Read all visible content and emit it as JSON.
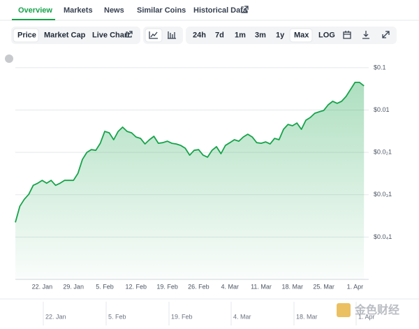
{
  "tabs": [
    {
      "label": "Overview",
      "active": true
    },
    {
      "label": "Markets",
      "active": false
    },
    {
      "label": "News",
      "active": false
    },
    {
      "label": "Similar Coins",
      "active": false
    },
    {
      "label": "Historical Data",
      "active": false
    }
  ],
  "toolbar": {
    "metrics": [
      {
        "label": "Price",
        "active": true
      },
      {
        "label": "Market Cap",
        "active": false
      },
      {
        "label": "Live Chart",
        "active": false
      }
    ],
    "ranges": [
      {
        "label": "24h",
        "active": false
      },
      {
        "label": "7d",
        "active": false
      },
      {
        "label": "1m",
        "active": false
      },
      {
        "label": "3m",
        "active": false
      },
      {
        "label": "1y",
        "active": false
      },
      {
        "label": "Max",
        "active": true
      }
    ],
    "log_label": "LOG"
  },
  "chart_data": {
    "type": "line",
    "color": "#16a34a",
    "log_scale": true,
    "grid": true,
    "categories": [
      null,
      null,
      null,
      null,
      null,
      null,
      "22. Jan",
      null,
      null,
      null,
      null,
      null,
      null,
      "29. Jan",
      null,
      null,
      null,
      null,
      null,
      null,
      "5. Feb",
      null,
      null,
      null,
      null,
      null,
      null,
      "12. Feb",
      null,
      null,
      null,
      null,
      null,
      null,
      "19. Feb",
      null,
      null,
      null,
      null,
      null,
      null,
      "26. Feb",
      null,
      null,
      null,
      null,
      null,
      null,
      "4. Mar",
      null,
      null,
      null,
      null,
      null,
      null,
      "11. Mar",
      null,
      null,
      null,
      null,
      null,
      null,
      "18. Mar",
      null,
      null,
      null,
      null,
      null,
      null,
      "25. Mar",
      null,
      null,
      null,
      null,
      null,
      null,
      "1. Apr",
      null,
      null
    ],
    "values": [
      2.22e-05,
      5.33e-05,
      7.8e-05,
      0.000102,
      0.000167,
      0.000187,
      0.000218,
      0.000187,
      0.000218,
      0.000167,
      0.000187,
      0.000218,
      0.000218,
      0.000218,
      0.000319,
      0.00068,
      0.001,
      0.00116,
      0.00112,
      0.00164,
      0.00313,
      0.0029,
      0.00199,
      0.00313,
      0.00394,
      0.00313,
      0.0029,
      0.00231,
      0.00214,
      0.00158,
      0.00199,
      0.0024,
      0.00164,
      0.0017,
      0.00184,
      0.00164,
      0.00158,
      0.00146,
      0.00126,
      0.00086,
      0.00112,
      0.00116,
      0.00086,
      0.00077,
      0.00112,
      0.00136,
      0.00093,
      0.00146,
      0.0017,
      0.00199,
      0.00184,
      0.00231,
      0.00269,
      0.00231,
      0.0017,
      0.00164,
      0.00177,
      0.00158,
      0.00214,
      0.00199,
      0.00351,
      0.00458,
      0.00425,
      0.00494,
      0.00351,
      0.00575,
      0.0067,
      0.0084,
      0.0091,
      0.0098,
      0.0133,
      0.0161,
      0.0144,
      0.0161,
      0.021,
      0.0307,
      0.045,
      0.045,
      0.0372
    ],
    "ylim": [
      1e-06,
      0.19
    ],
    "yticks": [
      {
        "value": 0.1,
        "label": "$0.1"
      },
      {
        "value": 0.01,
        "label": "$0.01"
      },
      {
        "value": 0.001,
        "label": "$0.0₂1"
      },
      {
        "value": 0.0001,
        "label": "$0.0₃1"
      },
      {
        "value": 1e-05,
        "label": "$0.0₄1"
      }
    ]
  },
  "navigator": {
    "labels": [
      "22. Jan",
      "5. Feb",
      "19. Feb",
      "4. Mar",
      "18. Mar",
      "1. Apr"
    ]
  },
  "watermark": "金色财经"
}
